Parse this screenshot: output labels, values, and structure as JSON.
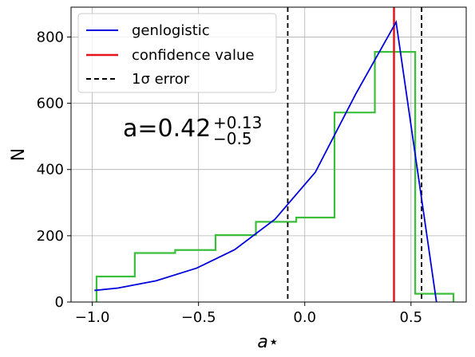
{
  "chart_data": {
    "type": "line",
    "xlabel": "a⋆",
    "ylabel": "N",
    "xlim": [
      -1.1,
      0.76
    ],
    "ylim": [
      0,
      890
    ],
    "grid": true,
    "legend_position": "top-left",
    "x_ticks": [
      {
        "value": -1.0,
        "label": "−1.0"
      },
      {
        "value": -0.5,
        "label": "−0.5"
      },
      {
        "value": 0.0,
        "label": "0.0"
      },
      {
        "value": 0.5,
        "label": "0.5"
      }
    ],
    "y_ticks": [
      {
        "value": 0,
        "label": "0"
      },
      {
        "value": 200,
        "label": "200"
      },
      {
        "value": 400,
        "label": "400"
      },
      {
        "value": 600,
        "label": "600"
      },
      {
        "value": 800,
        "label": "800"
      }
    ],
    "series": [
      {
        "name": "genlogistic",
        "kind": "line",
        "color": "#0000dd",
        "x": [
          -0.99,
          -0.88,
          -0.7,
          -0.51,
          -0.33,
          -0.14,
          0.05,
          0.24,
          0.43,
          0.62
        ],
        "y": [
          35,
          42,
          64,
          102,
          158,
          250,
          392,
          628,
          845,
          0
        ]
      },
      {
        "name": "confidence value",
        "kind": "vline",
        "color": "#e8141b",
        "x": 0.42
      },
      {
        "name": "1σ error",
        "kind": "vline-dashed",
        "color": "#000000",
        "x": [
          -0.08,
          0.55
        ]
      },
      {
        "name": "",
        "kind": "step-histogram",
        "color": "#3bbf3b",
        "edges": [
          -0.98,
          -0.8,
          -0.61,
          -0.42,
          -0.23,
          -0.04,
          0.14,
          0.33,
          0.52,
          0.7
        ],
        "counts": [
          77,
          148,
          157,
          202,
          242,
          255,
          572,
          755,
          25
        ]
      }
    ],
    "annotation": {
      "main": "a=0.42",
      "sup": "+0.13",
      "sub": "−0.5"
    }
  },
  "legend": [
    {
      "label": "genlogistic",
      "color": "#0000dd",
      "style": "solid"
    },
    {
      "label": "confidence value",
      "color": "#e8141b",
      "style": "solid"
    },
    {
      "label": "1σ error",
      "color": "#000000",
      "style": "dashed"
    }
  ]
}
